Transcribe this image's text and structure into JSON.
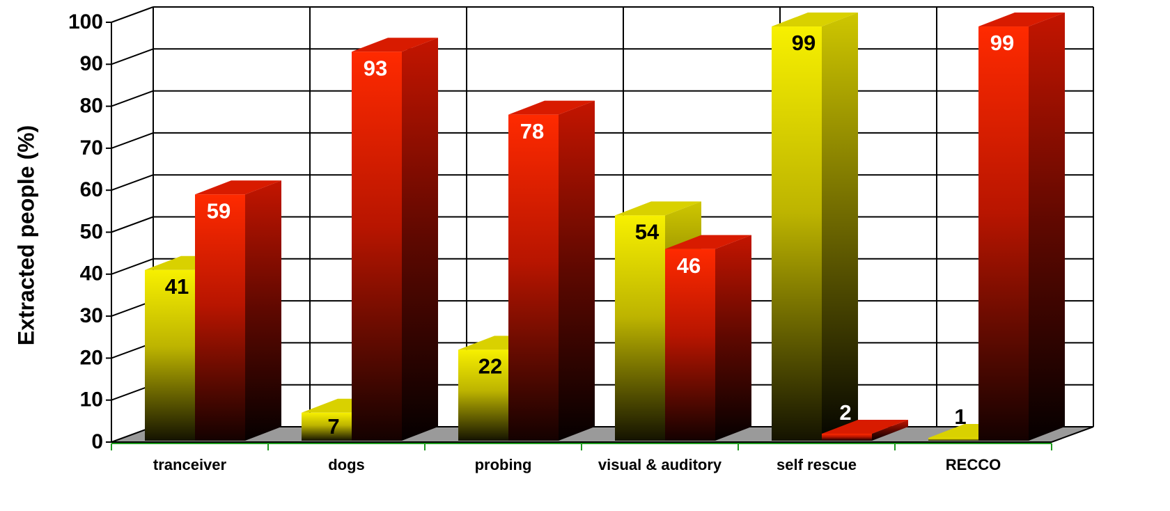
{
  "chart_data": {
    "type": "bar",
    "style": "3d-clustered",
    "title": "",
    "xlabel": "",
    "ylabel": "Extracted people (%)",
    "ylim": [
      0,
      100
    ],
    "yticks": [
      "0",
      "10",
      "20",
      "30",
      "40",
      "50",
      "60",
      "70",
      "80",
      "90",
      "100"
    ],
    "grid": true,
    "legend": "none",
    "categories": [
      "tranceiver",
      "dogs",
      "probing",
      "visual & auditory",
      "self rescue",
      "RECCO"
    ],
    "series": [
      {
        "color": "#f2ea00",
        "values": [
          41,
          7,
          22,
          54,
          99,
          1
        ]
      },
      {
        "color": "#f01a00",
        "values": [
          59,
          93,
          78,
          46,
          2,
          99
        ]
      }
    ],
    "data_labels": [
      [
        "41",
        "7",
        "22",
        "54",
        "99",
        "1"
      ],
      [
        "59",
        "93",
        "78",
        "46",
        "2",
        "99"
      ]
    ],
    "label_colors": [
      "#000000",
      "#ffffff"
    ],
    "floor_color": "#9a9a9a",
    "axis_color": "#1f9a1f"
  }
}
